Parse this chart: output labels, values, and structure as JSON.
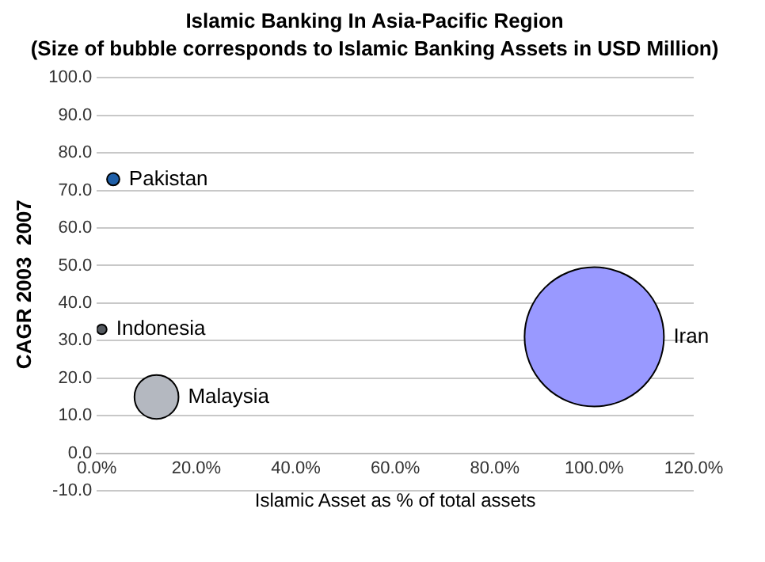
{
  "chart_data": {
    "type": "bubble",
    "title": "Islamic Banking In Asia-Pacific Region",
    "subtitle": "(Size of bubble corresponds to Islamic Banking Assets in USD Million)",
    "xlabel": "Islamic Asset as % of total assets",
    "ylabel": "CAGR 2003  2007",
    "xlim": [
      0,
      120
    ],
    "xticks": [
      {
        "value": 0,
        "label": "0.0%"
      },
      {
        "value": 20,
        "label": "20.0%"
      },
      {
        "value": 40,
        "label": "40.0%"
      },
      {
        "value": 60,
        "label": "60.0%"
      },
      {
        "value": 80,
        "label": "80.0%"
      },
      {
        "value": 100,
        "label": "100.0%"
      },
      {
        "value": 120,
        "label": "120.0%"
      }
    ],
    "ylim": [
      -10,
      100
    ],
    "yticks": [
      {
        "value": -10,
        "label": "-10.0"
      },
      {
        "value": 0,
        "label": "0.0"
      },
      {
        "value": 10,
        "label": "10.0"
      },
      {
        "value": 20,
        "label": "20.0"
      },
      {
        "value": 30,
        "label": "30.0"
      },
      {
        "value": 40,
        "label": "40.0"
      },
      {
        "value": 50,
        "label": "50.0"
      },
      {
        "value": 60,
        "label": "60.0"
      },
      {
        "value": 70,
        "label": "70.0"
      },
      {
        "value": 80,
        "label": "80.0"
      },
      {
        "value": 90,
        "label": "90.0"
      },
      {
        "value": 100,
        "label": "100.0"
      }
    ],
    "grid": "y",
    "legend": false,
    "series": [
      {
        "name": "Pakistan",
        "color": "#1f5fa8",
        "x": [
          3.3
        ],
        "values": [
          73
        ],
        "sizes": [
          0.008
        ]
      },
      {
        "name": "Indonesia",
        "color": "#555a60",
        "x": [
          1
        ],
        "values": [
          33
        ],
        "sizes": [
          0.005
        ]
      },
      {
        "name": "Malaysia",
        "color": "#b4b8c0",
        "x": [
          12
        ],
        "values": [
          15
        ],
        "sizes": [
          0.1
        ]
      },
      {
        "name": "Iran",
        "color": "#9999ff",
        "x": [
          100
        ],
        "values": [
          31
        ],
        "sizes": [
          1
        ]
      }
    ]
  }
}
